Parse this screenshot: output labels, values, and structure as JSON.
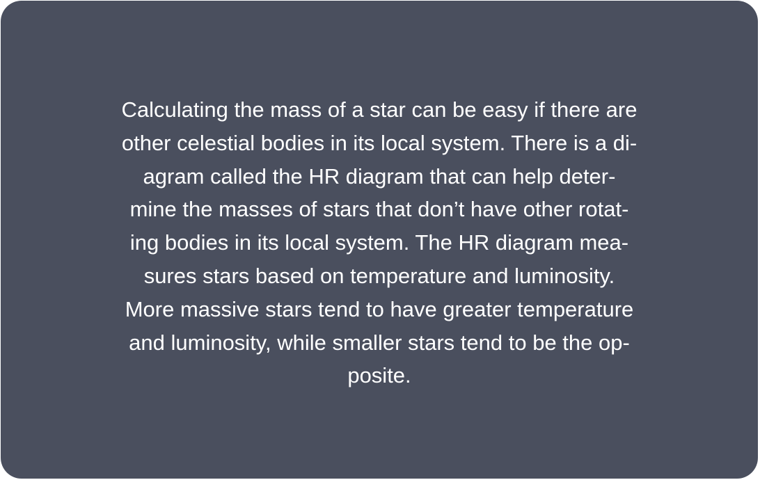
{
  "card": {
    "background": "#4a4f5e",
    "text_color": "#ffffff",
    "lines": [
      "Calculating the mass of a star can be easy if there are",
      "other celestial bodies in its local system. There is a di-",
      "agram called the HR diagram that can help deter-",
      "mine the masses of stars that don’t have other rotat-",
      "ing bodies in its local system. The HR diagram mea-",
      "sures stars based on temperature and luminosity.",
      "More massive stars tend to have greater temperature",
      "and luminosity, while smaller stars tend to be the op-",
      "posite."
    ]
  }
}
